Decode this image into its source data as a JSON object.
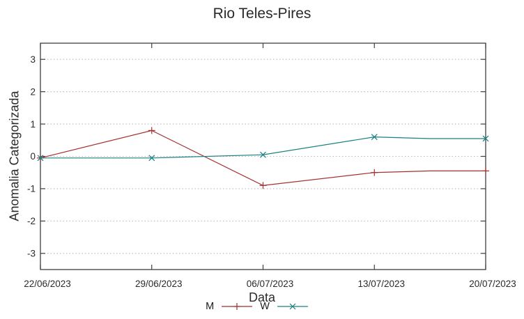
{
  "chart_data": {
    "type": "line",
    "title": "Rio Teles-Pires",
    "xlabel": "Data",
    "ylabel": "Anomalia Categorizada",
    "x_tick_labels": [
      "22/06/2023",
      "29/06/2023",
      "06/07/2023",
      "13/07/2023",
      "20/07/2023"
    ],
    "x_tick_days": [
      0,
      7,
      14,
      21,
      28
    ],
    "xlim_days": [
      0,
      28
    ],
    "y_ticks": [
      "3",
      "2",
      "1",
      "0",
      "-1",
      "-2",
      "-3"
    ],
    "y_tick_values": [
      3,
      2,
      1,
      0,
      -1,
      -2,
      -3
    ],
    "ylim": [
      -3.5,
      3.5
    ],
    "grid": "horizontal-dotted",
    "legend_position": "bottom-center-below-xlabel",
    "series": [
      {
        "name": "M",
        "color": "#a52f2f",
        "marker": "plus",
        "x_days": [
          0,
          7,
          14,
          21,
          24.5,
          28
        ],
        "values": [
          -0.05,
          0.8,
          -0.9,
          -0.5,
          -0.45,
          -0.45
        ],
        "marker_at_days": [
          0,
          7,
          14,
          21,
          28
        ]
      },
      {
        "name": "W",
        "color": "#1a8080",
        "marker": "cross",
        "x_days": [
          0,
          7,
          14,
          21,
          24.5,
          28
        ],
        "values": [
          -0.05,
          -0.05,
          0.05,
          0.6,
          0.55,
          0.55
        ],
        "marker_at_days": [
          0,
          7,
          14,
          21,
          28
        ]
      }
    ],
    "colors": {
      "background": "#ffffff",
      "border": "#3f3f3f",
      "grid": "#b8b8b8",
      "text": "#2a2a2a"
    }
  }
}
